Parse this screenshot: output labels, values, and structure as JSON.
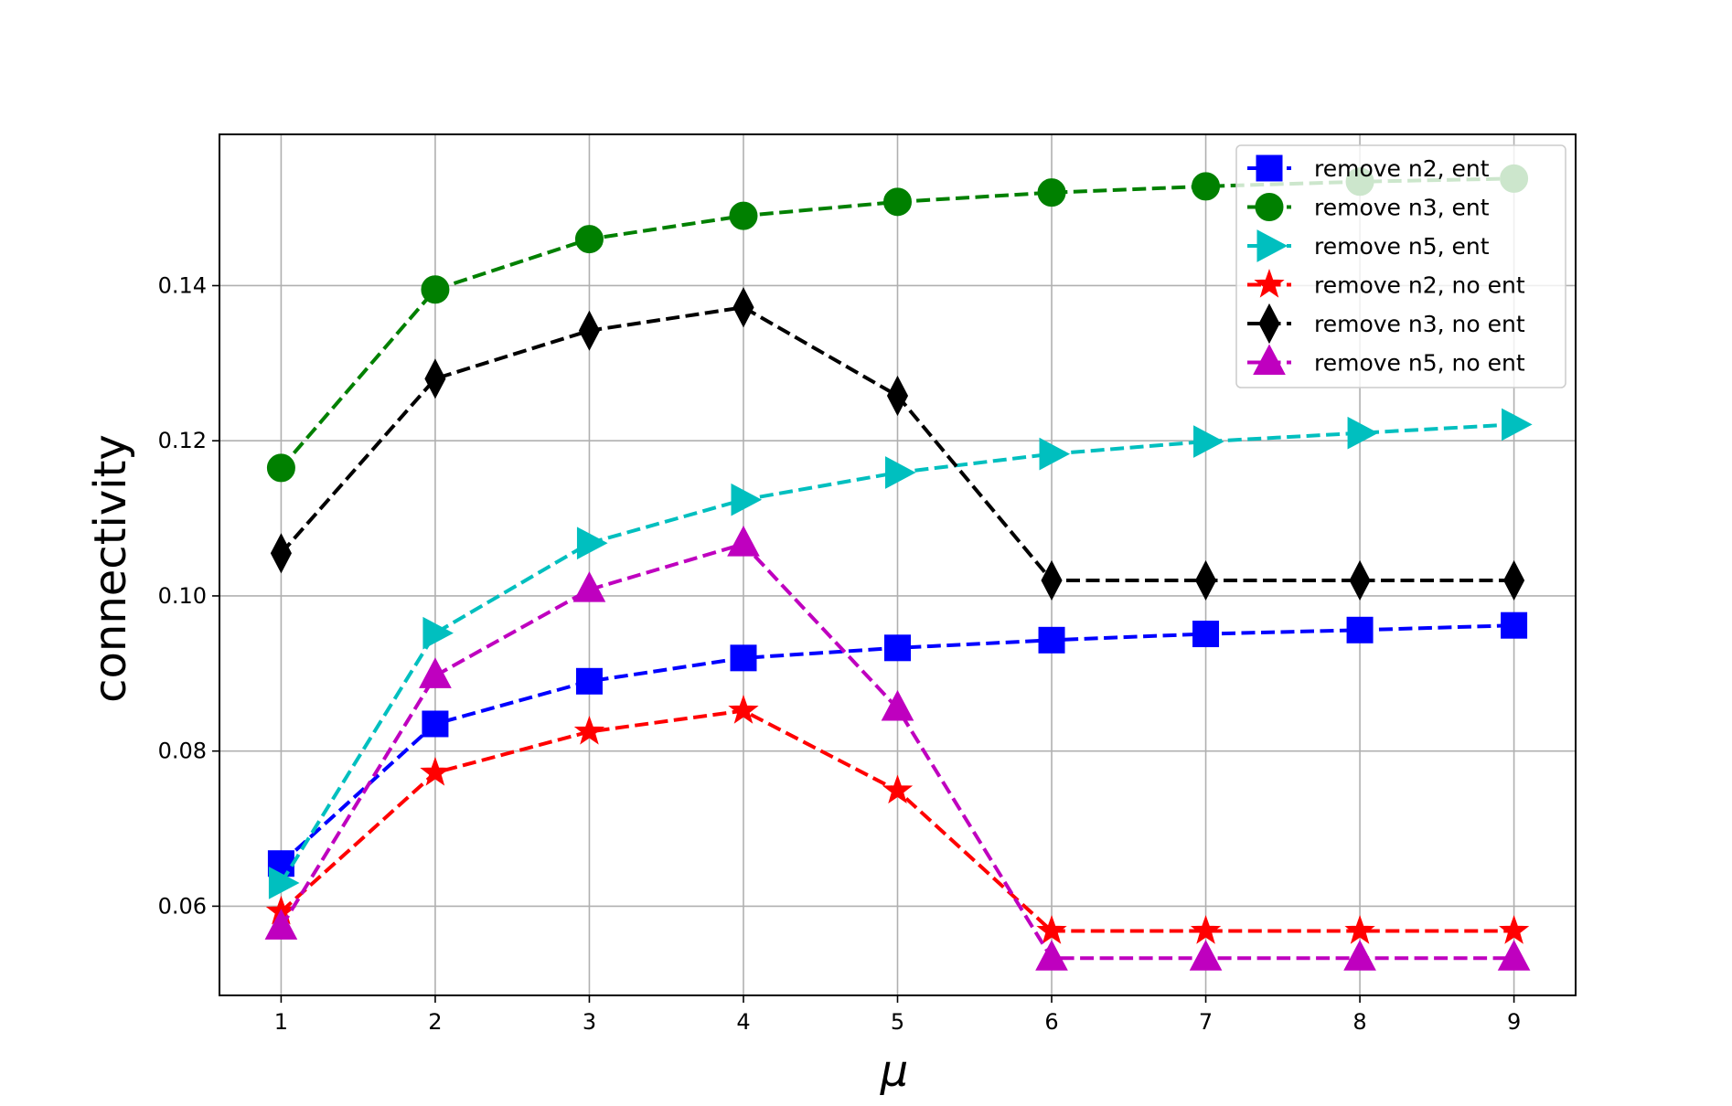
{
  "chart_data": {
    "type": "line",
    "xlabel": "μ",
    "ylabel": "connectivity",
    "x": [
      1,
      2,
      3,
      4,
      5,
      6,
      7,
      8,
      9
    ],
    "xlim": [
      0.6,
      9.4
    ],
    "ylim": [
      0.0485,
      0.1595
    ],
    "xticks": [
      "1",
      "2",
      "3",
      "4",
      "5",
      "6",
      "7",
      "8",
      "9"
    ],
    "yticks": [
      "0.06",
      "0.08",
      "0.10",
      "0.12",
      "0.14"
    ],
    "ytick_values": [
      0.06,
      0.08,
      0.1,
      0.12,
      0.14
    ],
    "grid": true,
    "legend_position": "top-right",
    "series": [
      {
        "name": "remove n2, ent",
        "color": "#0000ff",
        "marker": "square",
        "values": [
          0.0655,
          0.0835,
          0.089,
          0.092,
          0.0933,
          0.0943,
          0.0951,
          0.0956,
          0.0962
        ]
      },
      {
        "name": "remove n3, ent",
        "color": "#008000",
        "marker": "circle",
        "values": [
          0.1165,
          0.1395,
          0.146,
          0.149,
          0.1508,
          0.152,
          0.1528,
          0.1534,
          0.1538
        ]
      },
      {
        "name": "remove n5, ent",
        "color": "#00bfbf",
        "marker": "triangle-right",
        "values": [
          0.063,
          0.0952,
          0.1068,
          0.1124,
          0.1159,
          0.1183,
          0.1199,
          0.121,
          0.1221
        ]
      },
      {
        "name": "remove n2, no ent",
        "color": "#ff0000",
        "marker": "star",
        "values": [
          0.0593,
          0.0772,
          0.0825,
          0.0852,
          0.0749,
          0.0568,
          0.0568,
          0.0568,
          0.0568
        ]
      },
      {
        "name": "remove n3, no ent",
        "color": "#000000",
        "marker": "diamond",
        "values": [
          0.1055,
          0.128,
          0.1342,
          0.1372,
          0.1258,
          0.102,
          0.102,
          0.102,
          0.102
        ]
      },
      {
        "name": "remove n5, no ent",
        "color": "#bf00bf",
        "marker": "triangle-up",
        "values": [
          0.0573,
          0.0897,
          0.1008,
          0.1067,
          0.0855,
          0.0533,
          0.0533,
          0.0533,
          0.0533
        ]
      }
    ]
  }
}
